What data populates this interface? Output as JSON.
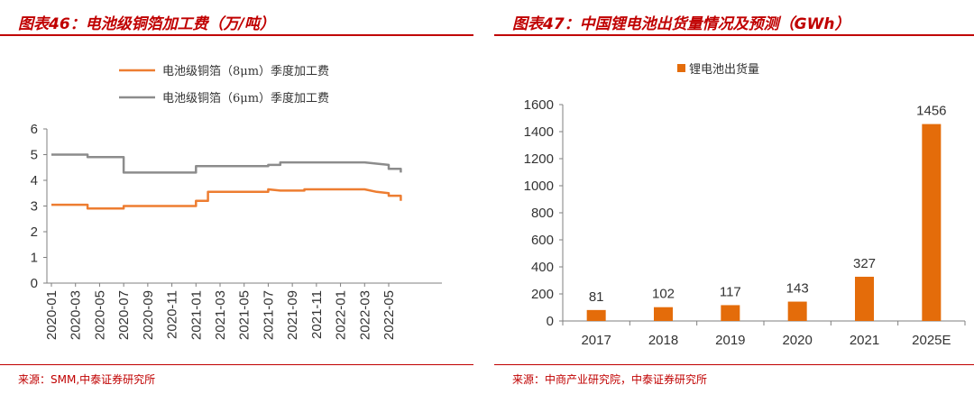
{
  "left": {
    "title": "图表46：电池级铜箔加工费（万/吨）",
    "source": "来源：SMM,中泰证券研究所",
    "chart_data": {
      "type": "line",
      "title": "",
      "x_ticks": [
        "2020-01",
        "2020-03",
        "2020-05",
        "2020-07",
        "2020-09",
        "2020-11",
        "2021-01",
        "2021-03",
        "2021-05",
        "2021-07",
        "2021-09",
        "2021-11",
        "2022-01",
        "2022-03",
        "2022-05"
      ],
      "y_ticks": [
        "0",
        "1",
        "2",
        "3",
        "4",
        "5",
        "6"
      ],
      "ylim": [
        0,
        6
      ],
      "grid": false,
      "legend_position": "top",
      "series": [
        {
          "name": "电池级铜箔（8μm）季度加工费",
          "color": "#ed7d31",
          "x": [
            "2020-01",
            "2020-04",
            "2020-04",
            "2020-07",
            "2020-07",
            "2021-01",
            "2021-01",
            "2021-02",
            "2021-02",
            "2021-07",
            "2021-07",
            "2021-08",
            "2021-08",
            "2021-10",
            "2021-10",
            "2022-03",
            "2022-04",
            "2022-05",
            "2022-05",
            "2022-06",
            "2022-06"
          ],
          "y": [
            3.05,
            3.05,
            2.9,
            2.9,
            3.0,
            3.0,
            3.2,
            3.2,
            3.55,
            3.55,
            3.65,
            3.6,
            3.6,
            3.6,
            3.65,
            3.65,
            3.55,
            3.5,
            3.4,
            3.4,
            3.2
          ]
        },
        {
          "name": "电池级铜箔（6μm）季度加工费",
          "color": "#8c8c8c",
          "x": [
            "2020-01",
            "2020-04",
            "2020-04",
            "2020-07",
            "2020-07",
            "2021-01",
            "2021-01",
            "2021-07",
            "2021-07",
            "2021-08",
            "2021-08",
            "2022-03",
            "2022-04",
            "2022-05",
            "2022-05",
            "2022-06",
            "2022-06"
          ],
          "y": [
            5.0,
            5.0,
            4.9,
            4.9,
            4.3,
            4.3,
            4.55,
            4.55,
            4.6,
            4.6,
            4.7,
            4.7,
            4.65,
            4.6,
            4.45,
            4.45,
            4.3
          ]
        }
      ]
    }
  },
  "right": {
    "title": "图表47：中国锂电池出货量情况及预测（GWh）",
    "source": "来源：中商产业研究院，中泰证券研究所",
    "chart_data": {
      "type": "bar",
      "title": "",
      "categories": [
        "2017",
        "2018",
        "2019",
        "2020",
        "2021",
        "2025E"
      ],
      "y_ticks": [
        "0",
        "200",
        "400",
        "600",
        "800",
        "1000",
        "1200",
        "1400",
        "1600"
      ],
      "series": [
        {
          "name": "锂电池出货量",
          "color": "#e46c0a",
          "values": [
            81,
            102,
            117,
            143,
            327,
            1456
          ]
        }
      ],
      "data_labels": [
        "81",
        "102",
        "117",
        "143",
        "327",
        "1456"
      ],
      "ylim": [
        0,
        1600
      ],
      "grid": false,
      "legend_position": "top"
    }
  }
}
